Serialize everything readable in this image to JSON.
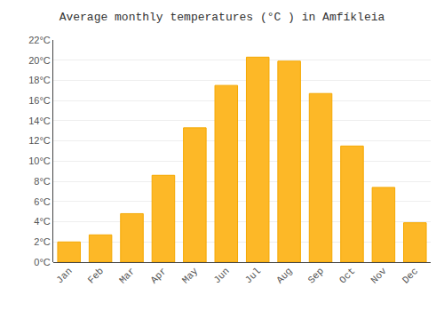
{
  "chart_data": {
    "type": "bar",
    "title": "Average monthly temperatures (°C ) in Amfí­kleia",
    "categories": [
      "Jan",
      "Feb",
      "Mar",
      "Apr",
      "May",
      "Jun",
      "Jul",
      "Aug",
      "Sep",
      "Oct",
      "Nov",
      "Dec"
    ],
    "values": [
      2.0,
      2.7,
      4.8,
      8.6,
      13.3,
      17.5,
      20.3,
      19.9,
      16.7,
      11.5,
      7.4,
      3.9
    ],
    "color": "#FDB827",
    "ylim": [
      0,
      22
    ],
    "yticks": [
      {
        "value": 0,
        "label": "0°C"
      },
      {
        "value": 2,
        "label": "2°C"
      },
      {
        "value": 4,
        "label": "4°C"
      },
      {
        "value": 6,
        "label": "6°C"
      },
      {
        "value": 8,
        "label": "8°C"
      },
      {
        "value": 10,
        "label": "10°C"
      },
      {
        "value": 12,
        "label": "12°C"
      },
      {
        "value": 14,
        "label": "14°C"
      },
      {
        "value": 16,
        "label": "16°C"
      },
      {
        "value": 18,
        "label": "18°C"
      },
      {
        "value": 20,
        "label": "20°C"
      },
      {
        "value": 22,
        "label": "22°C"
      }
    ],
    "grid": true
  }
}
